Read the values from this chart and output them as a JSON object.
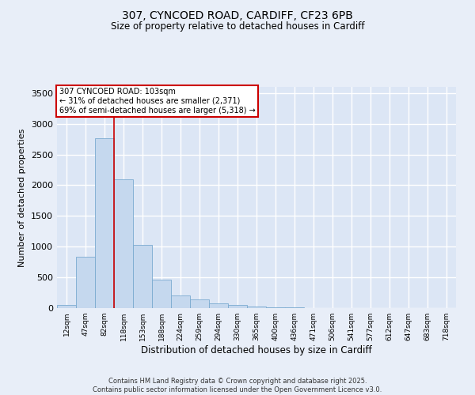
{
  "title_line1": "307, CYNCOED ROAD, CARDIFF, CF23 6PB",
  "title_line2": "Size of property relative to detached houses in Cardiff",
  "xlabel": "Distribution of detached houses by size in Cardiff",
  "ylabel": "Number of detached properties",
  "categories": [
    "12sqm",
    "47sqm",
    "82sqm",
    "118sqm",
    "153sqm",
    "188sqm",
    "224sqm",
    "259sqm",
    "294sqm",
    "330sqm",
    "365sqm",
    "400sqm",
    "436sqm",
    "471sqm",
    "506sqm",
    "541sqm",
    "577sqm",
    "612sqm",
    "647sqm",
    "683sqm",
    "718sqm"
  ],
  "values": [
    55,
    840,
    2760,
    2100,
    1030,
    460,
    210,
    140,
    80,
    50,
    30,
    18,
    10,
    5,
    3,
    2,
    1,
    1,
    1,
    0,
    0
  ],
  "bar_color": "#c5d8ee",
  "bar_edge_color": "#7aaad0",
  "vline_x": 2.5,
  "vline_color": "#cc0000",
  "annotation_text": "307 CYNCOED ROAD: 103sqm\n← 31% of detached houses are smaller (2,371)\n69% of semi-detached houses are larger (5,318) →",
  "annotation_box_edgecolor": "#cc0000",
  "annotation_bg_color": "#ffffff",
  "ylim": [
    0,
    3600
  ],
  "yticks": [
    0,
    500,
    1000,
    1500,
    2000,
    2500,
    3000,
    3500
  ],
  "fig_background_color": "#e8eef8",
  "plot_background_color": "#dce6f5",
  "grid_color": "#ffffff",
  "footer_line1": "Contains HM Land Registry data © Crown copyright and database right 2025.",
  "footer_line2": "Contains public sector information licensed under the Open Government Licence v3.0."
}
